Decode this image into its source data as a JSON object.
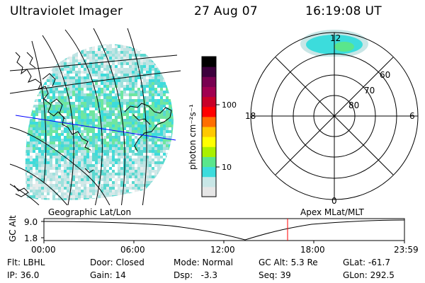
{
  "header": {
    "title": "Ultraviolet Imager",
    "date": "27 Aug 07",
    "time": "16:19:08 UT"
  },
  "colorbar": {
    "unit_label": "photon cm⁻²s⁻¹",
    "ticks": [
      "100",
      "10"
    ],
    "scale": "log",
    "colors": [
      "#e6e6e6",
      "#c8e6e6",
      "#3cdcdc",
      "#5ae68c",
      "#aaf000",
      "#ffff00",
      "#ffc800",
      "#ff6e00",
      "#ff0000",
      "#c80028",
      "#a00050",
      "#780050",
      "#3c003c",
      "#000000"
    ]
  },
  "polar_plot": {
    "mlt_labels": {
      "top": "12",
      "left": "18",
      "right": "6",
      "bottom": "0"
    },
    "lat_labels": [
      "60",
      "70",
      "80"
    ]
  },
  "timeline": {
    "left_title": "Geographic Lat/Lon",
    "right_title": "Apex MLat/MLT",
    "axis_label": "GC Alt",
    "y_ticks": [
      "9.0",
      "1.8"
    ],
    "x_ticks": [
      "00:00",
      "06:00",
      "12:00",
      "18:00",
      "23:59"
    ],
    "current_time_marker_color": "#ff0000"
  },
  "info": {
    "flt": "Flt: LBHL",
    "ip": "IP: 36.0",
    "door": "Door: Closed",
    "gain": "Gain: 14",
    "mode": "Mode: Normal",
    "dsp": "Dsp:   -3.3",
    "gc_alt": "GC Alt: 5.3 Re",
    "seq": "Seq: 39",
    "glat": "GLat: -61.7",
    "glon": "GLon: 292.5"
  }
}
